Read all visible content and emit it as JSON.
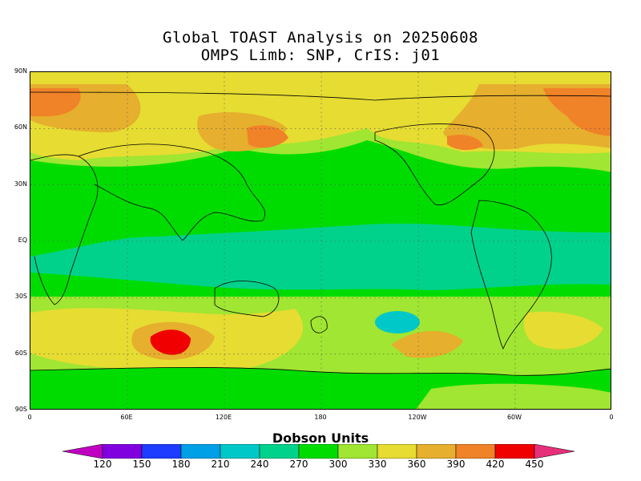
{
  "title": {
    "line1": "Global TOAST Analysis on 20250608",
    "line2": "OMPS Limb: SNP,  CrIS: j01"
  },
  "map": {
    "lat_labels": [
      "90N",
      "60N",
      "30N",
      "EQ",
      "30S",
      "60S",
      "90S"
    ],
    "lon_labels": [
      "0",
      "60E",
      "120E",
      "180",
      "120W",
      "60W",
      "0"
    ],
    "gridlines": true
  },
  "colorbar": {
    "title": "Dobson Units",
    "levels": [
      "120",
      "150",
      "180",
      "210",
      "240",
      "270",
      "300",
      "330",
      "360",
      "390",
      "420",
      "450"
    ],
    "colors": {
      "below_120": "#c000c0",
      "120_150": "#8000e0",
      "150_180": "#1e3cff",
      "180_210": "#00a0e6",
      "210_240": "#00c8c8",
      "240_270": "#00d28c",
      "270_300": "#00dc00",
      "300_330": "#a0e632",
      "330_360": "#e6dc32",
      "360_390": "#e6af2d",
      "390_420": "#f08228",
      "420_450": "#f00000",
      "above_450": "#e6307a"
    }
  }
}
